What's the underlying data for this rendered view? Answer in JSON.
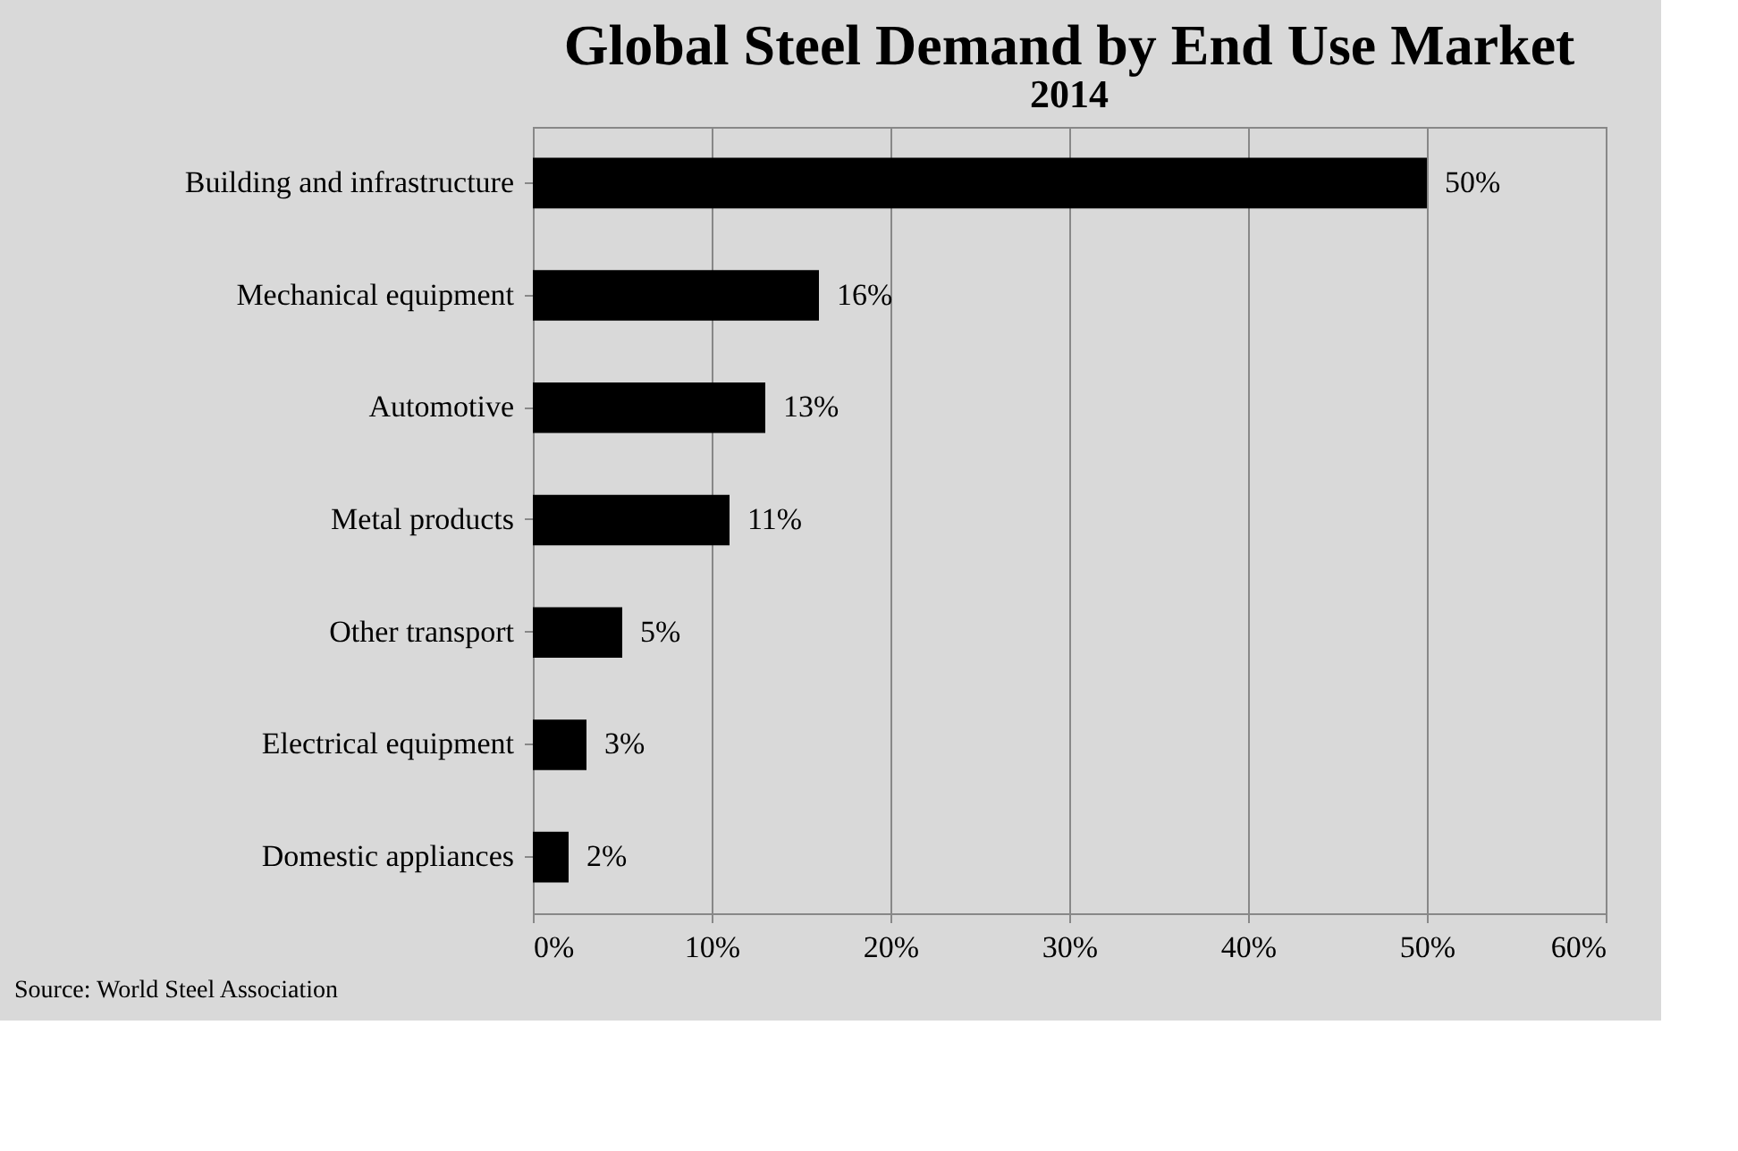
{
  "chart_data": {
    "type": "bar",
    "orientation": "horizontal",
    "title": "Global Steel Demand by End Use Market",
    "subtitle": "2014",
    "categories": [
      "Building and infrastructure",
      "Mechanical equipment",
      "Automotive",
      "Metal products",
      "Other transport",
      "Electrical equipment",
      "Domestic appliances"
    ],
    "values": [
      50,
      16,
      13,
      11,
      5,
      3,
      2
    ],
    "value_labels": [
      "50%",
      "16%",
      "13%",
      "11%",
      "5%",
      "3%",
      "2%"
    ],
    "color": "#000000",
    "xlim": [
      0,
      60
    ],
    "xticks": [
      {
        "value": 0,
        "label": "0%"
      },
      {
        "value": 10,
        "label": "10%"
      },
      {
        "value": 20,
        "label": "20%"
      },
      {
        "value": 30,
        "label": "30%"
      },
      {
        "value": 40,
        "label": "40%"
      },
      {
        "value": 50,
        "label": "50%"
      },
      {
        "value": 60,
        "label": "60%"
      }
    ],
    "grid": "x",
    "annotations": [
      "Source: World Steel Association"
    ]
  }
}
